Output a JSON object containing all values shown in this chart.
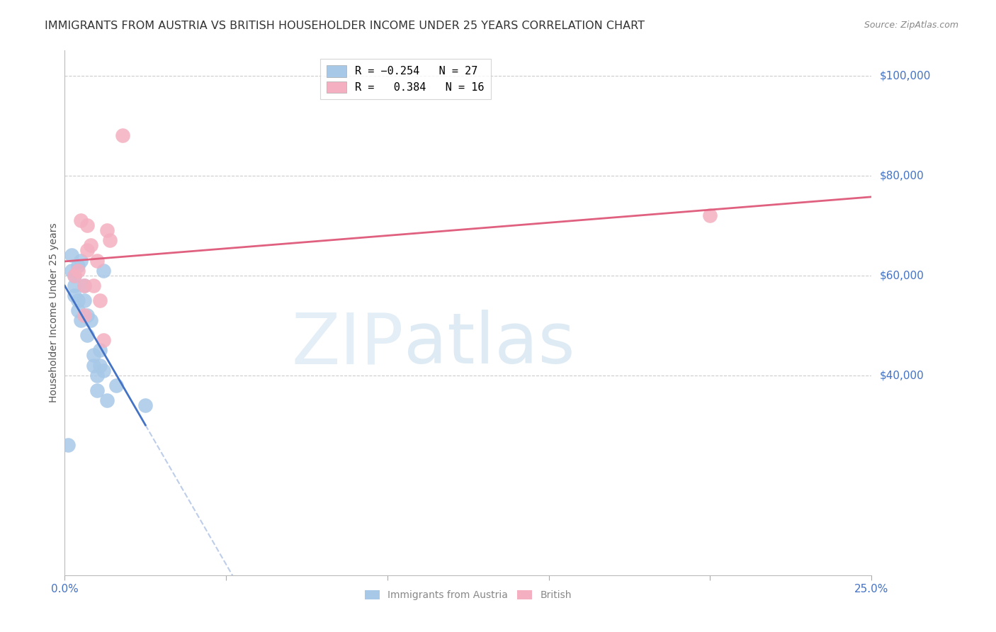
{
  "title": "IMMIGRANTS FROM AUSTRIA VS BRITISH HOUSEHOLDER INCOME UNDER 25 YEARS CORRELATION CHART",
  "source": "Source: ZipAtlas.com",
  "ylabel": "Householder Income Under 25 years",
  "ytick_labels": [
    "$100,000",
    "$80,000",
    "$60,000",
    "$40,000"
  ],
  "ytick_values": [
    100000,
    80000,
    60000,
    40000
  ],
  "ylim": [
    0,
    105000
  ],
  "xlim": [
    0.0,
    0.25
  ],
  "watermark_zip": "ZIP",
  "watermark_atlas": "atlas",
  "austria_x": [
    0.001,
    0.002,
    0.002,
    0.003,
    0.003,
    0.003,
    0.004,
    0.004,
    0.004,
    0.005,
    0.005,
    0.006,
    0.006,
    0.007,
    0.007,
    0.008,
    0.009,
    0.009,
    0.01,
    0.01,
    0.011,
    0.011,
    0.012,
    0.012,
    0.013,
    0.016,
    0.025
  ],
  "austria_y": [
    26000,
    61000,
    64000,
    56000,
    58000,
    60000,
    53000,
    55000,
    62000,
    51000,
    63000,
    55000,
    58000,
    48000,
    52000,
    51000,
    42000,
    44000,
    40000,
    37000,
    42000,
    45000,
    41000,
    61000,
    35000,
    38000,
    34000
  ],
  "british_x": [
    0.003,
    0.004,
    0.005,
    0.006,
    0.006,
    0.007,
    0.007,
    0.008,
    0.009,
    0.01,
    0.011,
    0.012,
    0.013,
    0.014,
    0.018,
    0.2
  ],
  "british_y": [
    60000,
    61000,
    71000,
    52000,
    58000,
    65000,
    70000,
    66000,
    58000,
    63000,
    55000,
    47000,
    69000,
    67000,
    88000,
    72000
  ],
  "austria_color": "#a8c8e8",
  "british_color": "#f4b0c0",
  "austria_line_color": "#4472c4",
  "british_line_color": "#e06080",
  "background_color": "#ffffff",
  "grid_color": "#cccccc",
  "title_color": "#333333",
  "axis_color": "#4472c4",
  "source_color": "#888888",
  "title_fontsize": 11.5,
  "source_fontsize": 9,
  "ylabel_fontsize": 10,
  "tick_fontsize": 11
}
